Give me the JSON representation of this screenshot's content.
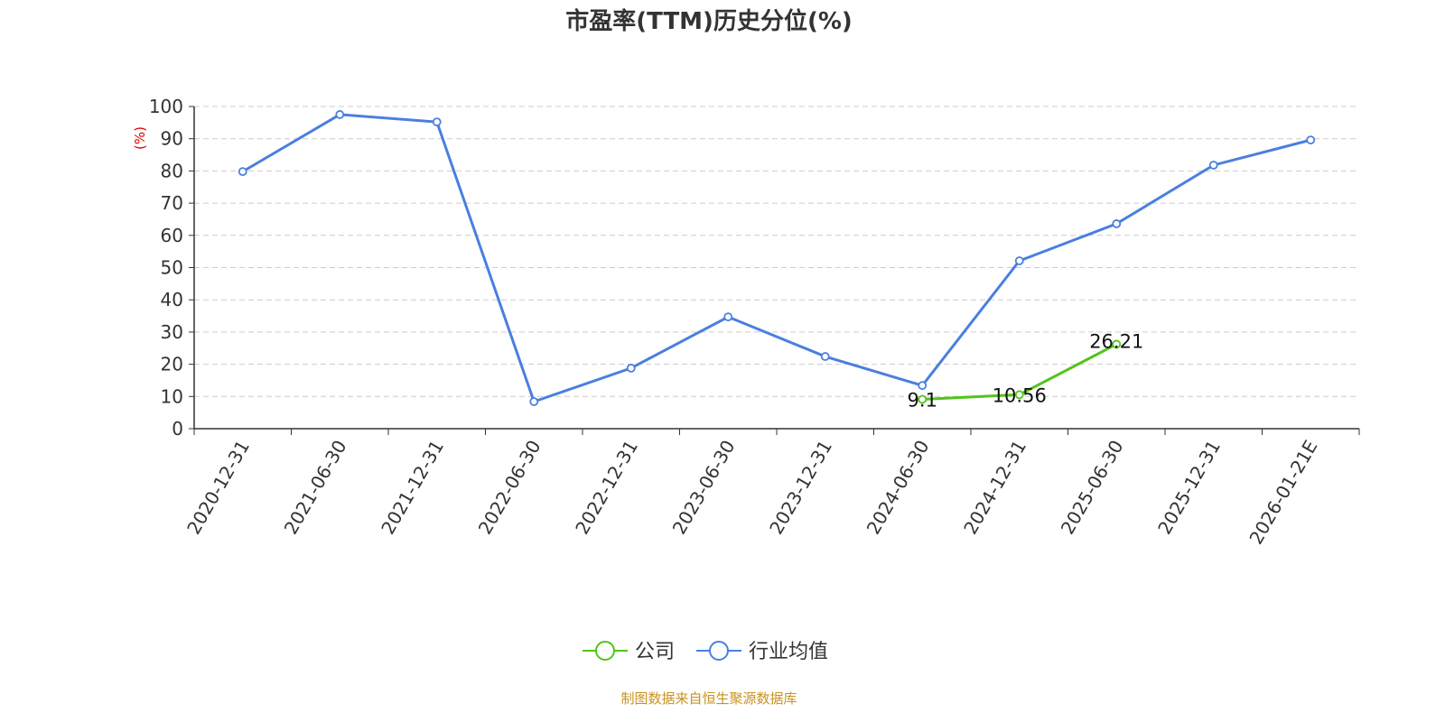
{
  "chart_data": {
    "type": "line",
    "title": "市盈率(TTM)历史分位(%)",
    "ylabel": "(%)",
    "ylim": [
      0,
      100
    ],
    "yticks": [
      0,
      10,
      20,
      30,
      40,
      50,
      60,
      70,
      80,
      90,
      100
    ],
    "grid": true,
    "legend_position": "bottom",
    "categories": [
      "2020-12-31",
      "2021-06-30",
      "2021-12-31",
      "2022-06-30",
      "2022-12-31",
      "2023-06-30",
      "2023-12-31",
      "2024-06-30",
      "2024-12-31",
      "2025-06-30",
      "2025-12-31",
      "2026-01-21E"
    ],
    "series": [
      {
        "name": "公司",
        "color": "#52c41a",
        "values": [
          null,
          null,
          null,
          null,
          null,
          null,
          null,
          9.1,
          10.56,
          26.21,
          null,
          null
        ],
        "labels": [
          null,
          null,
          null,
          null,
          null,
          null,
          null,
          "9.1",
          "10.56",
          "26.21",
          null,
          null
        ]
      },
      {
        "name": "行业均值",
        "color": "#4a7fdf",
        "values": [
          79.8,
          97.5,
          95.2,
          8.4,
          18.8,
          34.7,
          22.4,
          13.4,
          52.1,
          63.6,
          81.8,
          89.6
        ]
      }
    ]
  },
  "source": "制图数据来自恒生聚源数据库",
  "colors": {
    "ylabel": "#e00000",
    "source": "#c8921e",
    "grid": "#cccccc"
  }
}
